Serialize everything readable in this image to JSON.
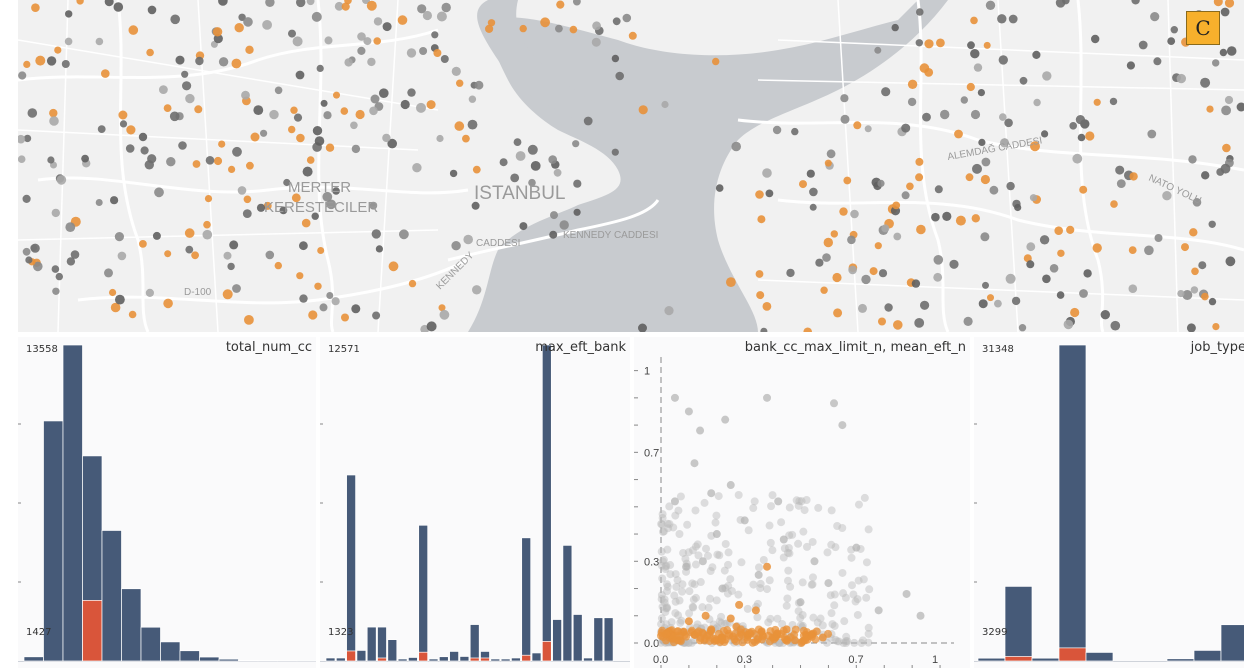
{
  "map": {
    "badge": "C",
    "labels": [
      "MERTER",
      "KERESTECILER",
      "ISTANBUL",
      "KENNEDY CADDESI",
      "CADDESI",
      "KENNEDY",
      "D-100",
      "ALEMDAĞ CADDESI",
      "NATO YOLU"
    ]
  },
  "panels": {
    "total_num_cc": {
      "title": "total_num_cc",
      "max": "13558",
      "min": "1427"
    },
    "max_eft_bank": {
      "title": "max_eft_bank",
      "max": "12571",
      "min": "1323"
    },
    "scatter": {
      "title": "bank_cc_max_limit_n, mean_eft_n"
    },
    "job_type": {
      "title": "job_type",
      "max": "31348",
      "min": "3299"
    }
  },
  "colors": {
    "bar": "#465a78",
    "highlight": "#d9553a",
    "orange": "#e8913a",
    "gray": "#777777",
    "water": "#c8cbcf"
  },
  "chart_data": [
    {
      "type": "bar",
      "title": "total_num_cc",
      "ylim": [
        0,
        13558
      ],
      "values": [
        180,
        10300,
        13558,
        8800,
        5600,
        3100,
        1450,
        820,
        440,
        170,
        80,
        30,
        20,
        10,
        5
      ],
      "highlight": [
        0,
        0,
        0,
        2600,
        0,
        0,
        0,
        0,
        0,
        0,
        0,
        0,
        0,
        0,
        0
      ]
    },
    {
      "type": "bar",
      "title": "max_eft_bank",
      "ylim": [
        0,
        12571
      ],
      "values": [
        120,
        120,
        7400,
        420,
        1350,
        1350,
        850,
        80,
        140,
        5400,
        80,
        170,
        380,
        180,
        1450,
        380,
        80,
        80,
        120,
        4900,
        320,
        12571,
        1650,
        4600,
        1850,
        120,
        1720,
        1720
      ],
      "highlight": [
        0,
        0,
        400,
        0,
        0,
        120,
        0,
        0,
        0,
        350,
        0,
        0,
        0,
        0,
        120,
        120,
        0,
        0,
        0,
        230,
        0,
        780,
        0,
        0,
        0,
        0,
        0,
        0
      ]
    },
    {
      "type": "scatter",
      "title": "bank_cc_max_limit_n, mean_eft_n",
      "xlim": [
        0,
        1.05
      ],
      "ylim": [
        0,
        1.05
      ],
      "xticks": [
        "0.0",
        "0.3",
        "0.7",
        "1"
      ],
      "yticks": [
        "0.0",
        "0.3",
        "0.7",
        "1"
      ],
      "series": [
        {
          "points": [
            [
              0.05,
              0.9
            ],
            [
              0.1,
              0.85
            ],
            [
              0.14,
              0.78
            ],
            [
              0.23,
              0.82
            ],
            [
              0.25,
              0.58
            ],
            [
              0.38,
              0.9
            ],
            [
              0.62,
              0.88
            ],
            [
              0.65,
              0.8
            ],
            [
              0.12,
              0.66
            ],
            [
              0.18,
              0.55
            ],
            [
              0.3,
              0.45
            ],
            [
              0.42,
              0.52
            ],
            [
              0.7,
              0.35
            ],
            [
              0.09,
              0.28
            ],
            [
              0.5,
              0.15
            ],
            [
              0.88,
              0.18
            ],
            [
              0.93,
              0.1
            ],
            [
              0.6,
              0.22
            ],
            [
              0.35,
              0.25
            ],
            [
              0.22,
              0.2
            ],
            [
              0.15,
              0.3
            ],
            [
              0.44,
              0.38
            ],
            [
              0.55,
              0.3
            ],
            [
              0.78,
              0.12
            ],
            [
              0.05,
              0.52
            ],
            [
              0.2,
              0.4
            ]
          ]
        },
        {
          "points": [
            [
              0.03,
              0.02
            ],
            [
              0.08,
              0.04
            ],
            [
              0.12,
              0.03
            ],
            [
              0.18,
              0.05
            ],
            [
              0.22,
              0.02
            ],
            [
              0.27,
              0.06
            ],
            [
              0.31,
              0.03
            ],
            [
              0.36,
              0.04
            ],
            [
              0.4,
              0.02
            ],
            [
              0.45,
              0.05
            ],
            [
              0.52,
              0.03
            ],
            [
              0.58,
              0.02
            ],
            [
              0.1,
              0.08
            ],
            [
              0.16,
              0.1
            ],
            [
              0.25,
              0.09
            ],
            [
              0.34,
              0.12
            ],
            [
              0.38,
              0.28
            ],
            [
              0.06,
              0.01
            ],
            [
              0.2,
              0.01
            ],
            [
              0.48,
              0.01
            ],
            [
              0.28,
              0.14
            ]
          ]
        }
      ]
    },
    {
      "type": "bar",
      "title": "job_type",
      "ylim": [
        0,
        31348
      ],
      "values": [
        280,
        7400,
        280,
        31348,
        850,
        0,
        0,
        220,
        1050,
        3600,
        220
      ],
      "highlight": [
        0,
        450,
        0,
        1300,
        0,
        0,
        0,
        0,
        0,
        0,
        0
      ]
    }
  ]
}
